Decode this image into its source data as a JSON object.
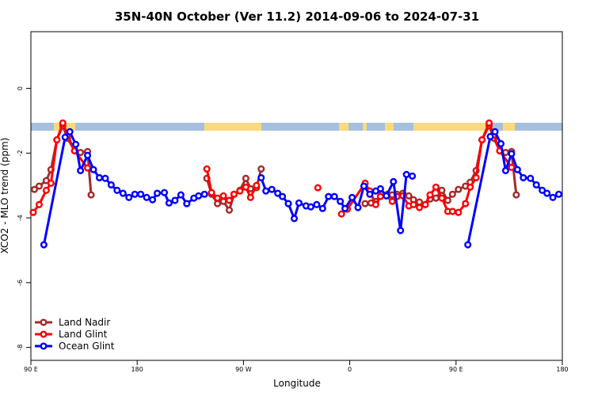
{
  "chart_data": {
    "type": "line",
    "title": "35N-40N October (Ver 11.2)   2014-09-06 to 2024-07-31",
    "xlabel": "Longitude",
    "ylabel": "XCO2 - MLO trend (ppm)",
    "xlim": [
      90,
      540
    ],
    "xticks": [
      {
        "value": 90,
        "label": "90 E"
      },
      180,
      {
        "value": 270,
        "label": "90 W"
      },
      {
        "value": 360,
        "label": "0"
      },
      {
        "value": 450,
        "label": "90 E"
      },
      {
        "value": 540,
        "label": "180"
      }
    ],
    "ylim": [
      -8.4,
      1.75
    ],
    "yticks": [
      0,
      -2,
      -4,
      -6,
      -8
    ],
    "legend": "bottom-left",
    "series": [
      {
        "name": "Land Nadir",
        "color": "#a52a2a",
        "x": [
          93,
          97,
          103,
          107,
          112,
          117,
          121,
          127,
          132,
          138,
          141,
          239,
          243,
          248,
          253,
          258,
          262,
          267,
          272,
          276,
          281,
          285,
          373,
          378,
          382,
          387,
          392,
          396,
          400,
          405,
          410,
          414,
          419,
          424,
          428,
          433,
          438,
          443,
          447,
          452,
          458,
          462,
          467,
          472,
          478,
          482,
          487,
          492,
          497,
          501
        ],
        "values": [
          -3.12,
          -3.02,
          -2.85,
          -2.51,
          -1.59,
          -1.15,
          -1.54,
          -1.93,
          -1.98,
          -1.95,
          -3.29,
          -2.78,
          -3.27,
          -3.56,
          -3.49,
          -3.76,
          -3.27,
          -3.15,
          -2.78,
          -3.1,
          -3.07,
          -2.49,
          -3.56,
          -3.54,
          -3.49,
          -3.27,
          -3.27,
          -3.29,
          -3.27,
          -3.24,
          -3.32,
          -3.44,
          -3.51,
          -3.59,
          -3.42,
          -3.39,
          -3.15,
          -3.46,
          -3.27,
          -3.12,
          -3.02,
          -2.9,
          -2.54,
          -1.59,
          -1.15,
          -1.54,
          -1.93,
          -1.98,
          -1.95,
          -3.29
        ]
      },
      {
        "name": "Land Glint",
        "color": "#ff0000",
        "x": [
          92,
          97,
          103,
          107,
          112,
          117,
          121,
          127,
          138,
          239,
          243,
          248,
          253,
          258,
          262,
          267,
          272,
          276,
          281,
          333,
          353,
          358,
          373,
          377,
          382,
          386,
          391,
          396,
          400,
          405,
          410,
          414,
          419,
          424,
          428,
          433,
          438,
          443,
          447,
          452,
          458,
          462,
          467,
          472,
          478,
          482,
          487,
          497
        ],
        "values": [
          -3.83,
          -3.59,
          -3.15,
          -2.93,
          -1.59,
          -1.07,
          -1.44,
          -1.93,
          -2.46,
          -2.49,
          -3.22,
          -3.39,
          -3.32,
          -3.46,
          -3.27,
          -3.17,
          -3.05,
          -3.37,
          -3.0,
          -3.07,
          -3.88,
          -3.73,
          -2.93,
          -3.17,
          -3.59,
          -3.34,
          -3.32,
          -3.49,
          -3.34,
          -3.32,
          -3.63,
          -3.59,
          -3.68,
          -3.59,
          -3.29,
          -3.05,
          -3.39,
          -3.8,
          -3.8,
          -3.83,
          -3.56,
          -3.05,
          -2.76,
          -1.59,
          -1.07,
          -1.44,
          -1.93,
          -2.44
        ]
      },
      {
        "name": "Ocean Glint",
        "color": "#0000ff",
        "x": [
          101,
          119,
          123,
          128,
          132,
          138,
          143,
          148,
          153,
          158,
          163,
          168,
          173,
          178,
          183,
          188,
          193,
          197,
          203,
          207,
          212,
          217,
          222,
          228,
          232,
          237,
          285,
          289,
          294,
          299,
          303,
          308,
          313,
          317,
          323,
          327,
          332,
          337,
          342,
          347,
          352,
          356,
          362,
          367,
          372,
          377,
          382,
          386,
          391,
          397,
          403,
          408,
          413,
          460,
          479,
          483,
          488,
          492,
          497,
          502,
          507,
          513,
          518,
          523,
          527,
          532,
          537
        ],
        "values": [
          -4.83,
          -1.51,
          -1.34,
          -1.73,
          -2.54,
          -2.07,
          -2.51,
          -2.76,
          -2.78,
          -2.98,
          -3.15,
          -3.24,
          -3.37,
          -3.27,
          -3.27,
          -3.37,
          -3.44,
          -3.24,
          -3.22,
          -3.54,
          -3.46,
          -3.29,
          -3.56,
          -3.39,
          -3.32,
          -3.27,
          -2.76,
          -3.17,
          -3.12,
          -3.24,
          -3.34,
          -3.56,
          -4.02,
          -3.54,
          -3.63,
          -3.66,
          -3.59,
          -3.71,
          -3.34,
          -3.34,
          -3.49,
          -3.71,
          -3.37,
          -3.68,
          -3.02,
          -3.27,
          -3.17,
          -3.1,
          -3.32,
          -2.88,
          -4.39,
          -2.66,
          -2.71,
          -4.83,
          -1.49,
          -1.34,
          -1.71,
          -2.54,
          -2.02,
          -2.51,
          -2.76,
          -2.78,
          -2.98,
          -3.15,
          -3.24,
          -3.37,
          -3.27
        ]
      }
    ]
  }
}
